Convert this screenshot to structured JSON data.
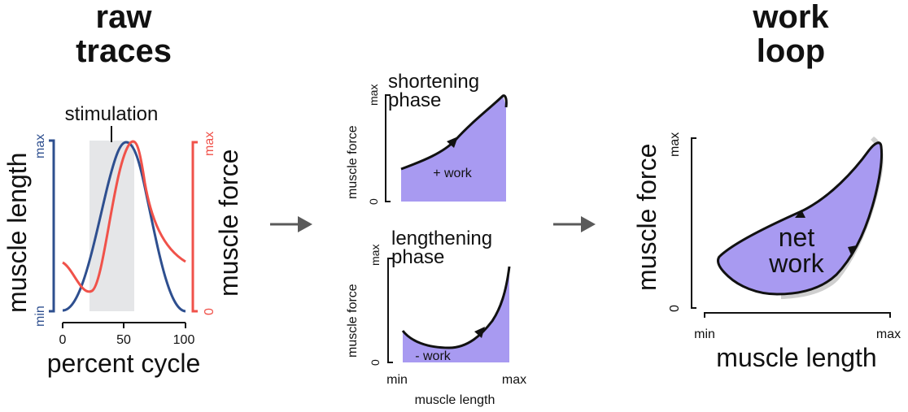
{
  "colors": {
    "length_blue": "#2e4f8f",
    "force_red": "#f0524a",
    "purple_fill": "#a89af1",
    "stim_gray": "#e5e6e8",
    "arrow_gray": "#5a5a5a",
    "shadow_gray": "#cfcfcf"
  },
  "panel_raw": {
    "title_line1": "raw",
    "title_line2": "traces",
    "stimulation_label": "stimulation",
    "left_axis_label": "muscle length",
    "left_axis_max": "max",
    "left_axis_min": "min",
    "right_axis_label": "muscle force",
    "right_axis_max": "max",
    "right_axis_min": "0",
    "x_axis_label": "percent cycle",
    "x_ticks": [
      "0",
      "50",
      "100"
    ]
  },
  "panel_shortening": {
    "title_line1": "shortening",
    "title_line2": "phase",
    "y_label": "muscle force",
    "y_max": "max",
    "y_min": "0",
    "area_label": "+ work"
  },
  "panel_lengthening": {
    "title_line1": "lengthening",
    "title_line2": "phase",
    "y_label": "muscle force",
    "y_max": "max",
    "y_min": "0",
    "area_label": "- work",
    "x_min": "min",
    "x_max": "max",
    "x_label": "muscle length"
  },
  "panel_loop": {
    "title_line1": "work",
    "title_line2": "loop",
    "y_label": "muscle force",
    "y_max": "max",
    "y_min": "0",
    "x_min": "min",
    "x_max": "max",
    "x_label": "muscle length",
    "center_line1": "net",
    "center_line2": "work"
  }
}
